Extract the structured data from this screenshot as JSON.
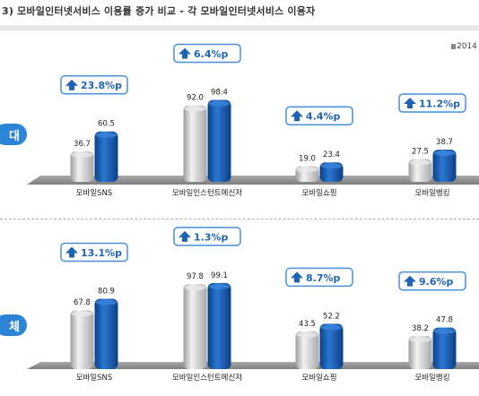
{
  "title": "3) 모바일인터넷서비스 이용률 증가 비교 - 각 모바일인터넷서비스 이용자",
  "legend_text": "2014",
  "groups": [
    {
      "tag": "대"
    },
    {
      "tag": "체"
    }
  ],
  "colors": {
    "grey_bar": "#c8c8c8",
    "blue_bar": "#1a5cb0",
    "bubble_border": "#4a90d9",
    "arrow": "#1f63b5",
    "tag_bg": "#2b84d6"
  },
  "chart_data": [
    {
      "type": "bar",
      "categories": [
        "모바일SNS",
        "모바일인스턴트메신저",
        "모바일쇼핑",
        "모바일뱅킹"
      ],
      "series": [
        {
          "values": [
            36.7,
            92.0,
            19.0,
            27.5
          ]
        },
        {
          "values": [
            60.5,
            98.4,
            23.4,
            38.7
          ]
        }
      ],
      "value_labels": [
        [
          "36.7",
          "60.5"
        ],
        [
          "92.0",
          "98.4"
        ],
        [
          "19.0",
          "23.4"
        ],
        [
          "27.5",
          "38.7"
        ]
      ],
      "increase_labels": [
        "23.8%p",
        "6.4%p",
        "4.4%p",
        "11.2%p"
      ]
    },
    {
      "type": "bar",
      "categories": [
        "모바일SNS",
        "모바일인스턴트메신저",
        "모바일쇼핑",
        "모바일뱅킹"
      ],
      "series": [
        {
          "values": [
            67.8,
            97.8,
            43.5,
            38.2
          ]
        },
        {
          "values": [
            80.9,
            99.1,
            52.2,
            47.8
          ]
        }
      ],
      "value_labels": [
        [
          "67.8",
          "80.9"
        ],
        [
          "97.8",
          "99.1"
        ],
        [
          "43.5",
          "52.2"
        ],
        [
          "38.2",
          "47.8"
        ]
      ],
      "increase_labels": [
        "13.1%p",
        "1.3%p",
        "8.7%p",
        "9.6%p"
      ]
    }
  ]
}
